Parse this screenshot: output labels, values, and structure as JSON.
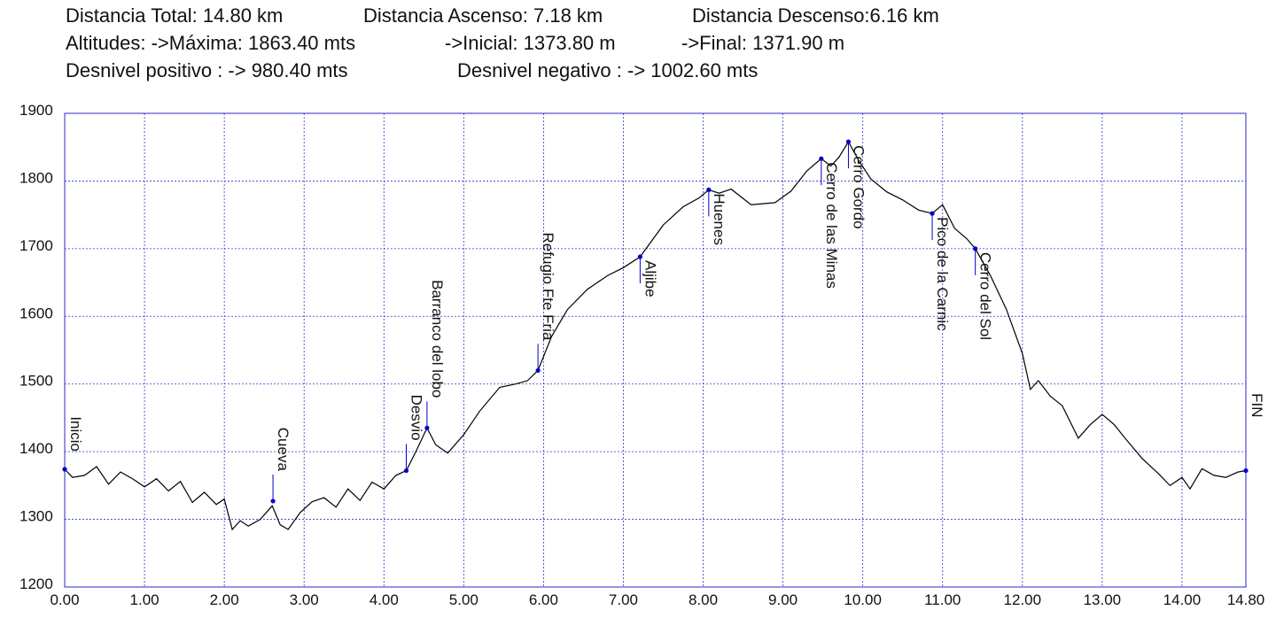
{
  "header": {
    "line1": [
      "Distancia Total: 14.80 km",
      "Distancia Ascenso: 7.18 km",
      "Distancia Descenso:6.16 km"
    ],
    "line2": [
      "Altitudes: ->Máxima: 1863.40 mts",
      "->Inicial: 1373.80 m",
      "->Final: 1371.90 m"
    ],
    "line3": [
      "Desnivel positivo : -> 980.40 mts",
      "Desnivel negativo : -> 1002.60 mts"
    ]
  },
  "chart_data": {
    "type": "line",
    "title": "",
    "xlabel": "",
    "ylabel": "",
    "xlim": [
      0,
      14.8
    ],
    "ylim": [
      1200,
      1900
    ],
    "grid": true,
    "line_color": "#000000",
    "grid_color": "#3333cc",
    "marker_color": "#0000cc",
    "x_ticks": [
      "0.00",
      "1.00",
      "2.00",
      "3.00",
      "4.00",
      "5.00",
      "6.00",
      "7.00",
      "8.00",
      "9.00",
      "10.00",
      "11.00",
      "12.00",
      "13.00",
      "14.00",
      "14.80"
    ],
    "x_tick_values": [
      0,
      1,
      2,
      3,
      4,
      5,
      6,
      7,
      8,
      9,
      10,
      11,
      12,
      13,
      14,
      14.8
    ],
    "y_ticks": [
      "1200",
      "1300",
      "1400",
      "1500",
      "1600",
      "1700",
      "1800",
      "1900"
    ],
    "y_tick_values": [
      1200,
      1300,
      1400,
      1500,
      1600,
      1700,
      1800,
      1900
    ],
    "profile": [
      [
        0.0,
        1374
      ],
      [
        0.1,
        1362
      ],
      [
        0.25,
        1365
      ],
      [
        0.4,
        1378
      ],
      [
        0.55,
        1352
      ],
      [
        0.7,
        1370
      ],
      [
        0.85,
        1360
      ],
      [
        1.0,
        1348
      ],
      [
        1.15,
        1360
      ],
      [
        1.3,
        1342
      ],
      [
        1.45,
        1356
      ],
      [
        1.6,
        1325
      ],
      [
        1.75,
        1340
      ],
      [
        1.9,
        1322
      ],
      [
        2.0,
        1330
      ],
      [
        2.1,
        1285
      ],
      [
        2.2,
        1298
      ],
      [
        2.3,
        1290
      ],
      [
        2.45,
        1300
      ],
      [
        2.6,
        1320
      ],
      [
        2.7,
        1292
      ],
      [
        2.8,
        1285
      ],
      [
        2.95,
        1310
      ],
      [
        3.1,
        1326
      ],
      [
        3.25,
        1332
      ],
      [
        3.4,
        1318
      ],
      [
        3.55,
        1345
      ],
      [
        3.7,
        1328
      ],
      [
        3.85,
        1355
      ],
      [
        4.0,
        1345
      ],
      [
        4.15,
        1365
      ],
      [
        4.28,
        1372
      ],
      [
        4.4,
        1400
      ],
      [
        4.54,
        1435
      ],
      [
        4.65,
        1410
      ],
      [
        4.8,
        1398
      ],
      [
        5.0,
        1425
      ],
      [
        5.2,
        1460
      ],
      [
        5.45,
        1495
      ],
      [
        5.65,
        1500
      ],
      [
        5.8,
        1505
      ],
      [
        5.93,
        1520
      ],
      [
        6.1,
        1570
      ],
      [
        6.3,
        1610
      ],
      [
        6.55,
        1640
      ],
      [
        6.8,
        1660
      ],
      [
        7.0,
        1672
      ],
      [
        7.21,
        1688
      ],
      [
        7.5,
        1735
      ],
      [
        7.75,
        1762
      ],
      [
        7.95,
        1775
      ],
      [
        8.07,
        1787
      ],
      [
        8.2,
        1782
      ],
      [
        8.35,
        1788
      ],
      [
        8.6,
        1765
      ],
      [
        8.9,
        1768
      ],
      [
        9.1,
        1785
      ],
      [
        9.3,
        1815
      ],
      [
        9.48,
        1833
      ],
      [
        9.6,
        1822
      ],
      [
        9.7,
        1835
      ],
      [
        9.82,
        1858
      ],
      [
        9.95,
        1830
      ],
      [
        10.1,
        1803
      ],
      [
        10.3,
        1784
      ],
      [
        10.5,
        1772
      ],
      [
        10.7,
        1757
      ],
      [
        10.87,
        1752
      ],
      [
        11.0,
        1765
      ],
      [
        11.15,
        1730
      ],
      [
        11.3,
        1715
      ],
      [
        11.41,
        1700
      ],
      [
        11.6,
        1660
      ],
      [
        11.8,
        1610
      ],
      [
        12.0,
        1545
      ],
      [
        12.1,
        1492
      ],
      [
        12.2,
        1505
      ],
      [
        12.35,
        1482
      ],
      [
        12.5,
        1468
      ],
      [
        12.7,
        1420
      ],
      [
        12.85,
        1440
      ],
      [
        13.0,
        1455
      ],
      [
        13.15,
        1440
      ],
      [
        13.3,
        1418
      ],
      [
        13.5,
        1390
      ],
      [
        13.7,
        1368
      ],
      [
        13.85,
        1350
      ],
      [
        14.0,
        1362
      ],
      [
        14.1,
        1345
      ],
      [
        14.25,
        1375
      ],
      [
        14.4,
        1365
      ],
      [
        14.55,
        1362
      ],
      [
        14.7,
        1370
      ],
      [
        14.8,
        1372
      ]
    ],
    "waypoints": [
      {
        "name": "Inicio",
        "x": 0.0,
        "y": 1374,
        "dir": "up"
      },
      {
        "name": "Cueva",
        "x": 2.61,
        "y": 1327,
        "dir": "up"
      },
      {
        "name": "Desvio",
        "x": 4.28,
        "y": 1372,
        "dir": "up"
      },
      {
        "name": "Barranco del lobo",
        "x": 4.54,
        "y": 1435,
        "dir": "up"
      },
      {
        "name": "Refugio Fte Fria",
        "x": 5.93,
        "y": 1520,
        "dir": "up"
      },
      {
        "name": "Aljibe",
        "x": 7.21,
        "y": 1688,
        "dir": "down"
      },
      {
        "name": "Huenes",
        "x": 8.07,
        "y": 1787,
        "dir": "down"
      },
      {
        "name": "Cerro de las Minas",
        "x": 9.48,
        "y": 1833,
        "dir": "down"
      },
      {
        "name": "Cerro Gordo",
        "x": 9.82,
        "y": 1858,
        "dir": "down"
      },
      {
        "name": "Pico de la Carnic",
        "x": 10.87,
        "y": 1752,
        "dir": "down"
      },
      {
        "name": "Cerro del Sol",
        "x": 11.41,
        "y": 1700,
        "dir": "down"
      },
      {
        "name": "FIN",
        "x": 14.8,
        "y": 1372,
        "dir": "up"
      }
    ]
  }
}
